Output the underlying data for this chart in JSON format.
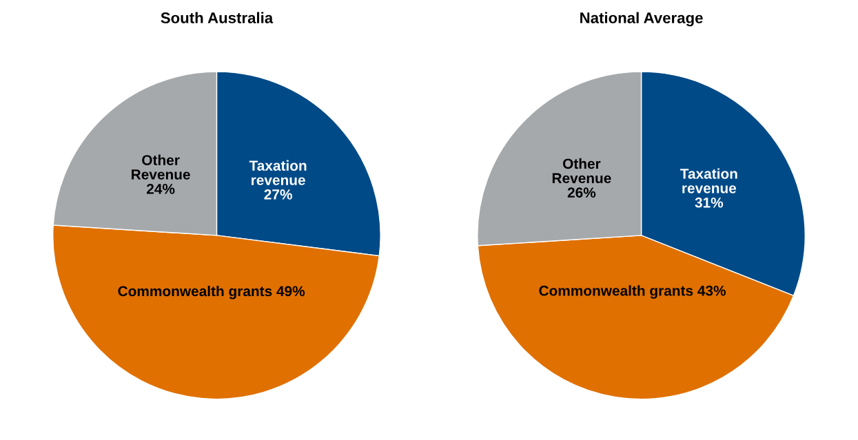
{
  "chart_data": [
    {
      "type": "pie",
      "title": "South Australia",
      "categories": [
        "Taxation revenue",
        "Commonwealth grants",
        "Other Revenue"
      ],
      "values": [
        27,
        49,
        24
      ],
      "value_labels": [
        "27%",
        "49%",
        "24%"
      ],
      "colors": [
        "#004a87",
        "#e07000",
        "#a6a9ac"
      ]
    },
    {
      "type": "pie",
      "title": "National Average",
      "categories": [
        "Taxation revenue",
        "Commonwealth grants",
        "Other Revenue"
      ],
      "values": [
        31,
        43,
        26
      ],
      "value_labels": [
        "31%",
        "43%",
        "26%"
      ],
      "colors": [
        "#004a87",
        "#e07000",
        "#a6a9ac"
      ]
    }
  ]
}
